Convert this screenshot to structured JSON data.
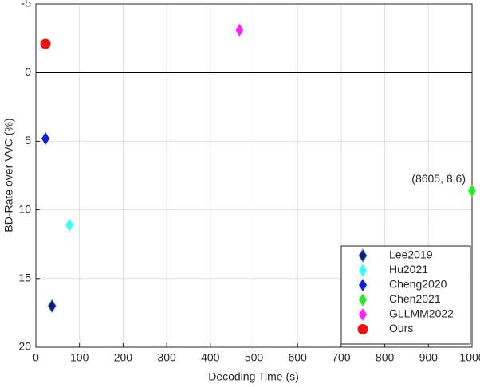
{
  "chart_data": {
    "type": "scatter",
    "xlabel": "Decoding Time (s)",
    "ylabel": "BD-Rate over VVC (%)",
    "xlim": [
      0,
      1000
    ],
    "xticks": [
      0,
      100,
      200,
      300,
      400,
      500,
      600,
      700,
      800,
      900,
      1000
    ],
    "ylim": [
      -5,
      20
    ],
    "yticks": [
      -5,
      0,
      5,
      10,
      15,
      20
    ],
    "y_reversed": true,
    "grid": true,
    "hline": 0,
    "legend": "lower right",
    "series": [
      {
        "name": "Lee2019",
        "color": "#0d1f6e",
        "marker": "diamond",
        "x": [
          37
        ],
        "values": [
          17.0
        ]
      },
      {
        "name": "Hu2021",
        "color": "#33ffff",
        "marker": "diamond",
        "x": [
          77
        ],
        "values": [
          11.1
        ]
      },
      {
        "name": "Cheng2020",
        "color": "#0a1fe0",
        "marker": "diamond",
        "x": [
          22
        ],
        "values": [
          4.8
        ]
      },
      {
        "name": "Chen2021",
        "color": "#22ee22",
        "marker": "diamond",
        "x": [
          1000
        ],
        "values": [
          8.6
        ]
      },
      {
        "name": "GLLMM2022",
        "color": "#ff22ff",
        "marker": "diamond",
        "x": [
          467
        ],
        "values": [
          -3.1
        ]
      },
      {
        "name": "Ours",
        "color": "#ee1111",
        "marker": "circle",
        "x": [
          22
        ],
        "values": [
          -2.1
        ]
      }
    ],
    "annotations": [
      {
        "text": "(8605, 8.6)",
        "series": 3
      }
    ]
  }
}
